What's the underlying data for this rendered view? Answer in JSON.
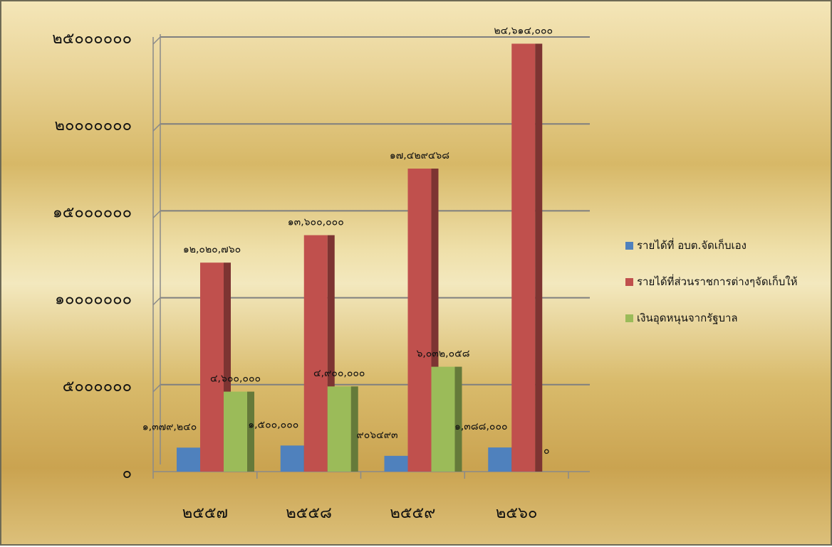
{
  "chart_data": {
    "type": "bar",
    "title": "",
    "xlabel": "",
    "ylabel": "",
    "ylim": [
      0,
      25000000
    ],
    "grid": true,
    "legend_position": "right",
    "categories": [
      "๒๕๕๗",
      "๒๕๕๘",
      "๒๕๕๙",
      "๒๕๖๐"
    ],
    "y_ticks": [
      0,
      5000000,
      10000000,
      15000000,
      20000000,
      25000000
    ],
    "y_tick_labels": [
      "๐",
      "๕๐๐๐๐๐๐",
      "๑๐๐๐๐๐๐๐",
      "๑๕๐๐๐๐๐๐",
      "๒๐๐๐๐๐๐๐",
      "๒๕๐๐๐๐๐๐"
    ],
    "series": [
      {
        "name": "รายได้ที่ อบต.จัดเก็บเอง",
        "color": "#4f81bd",
        "values": [
          1379240,
          1500000,
          906493,
          1388000
        ],
        "labels": [
          "๑,๓๗๙,๒๔๐",
          "๑,๕๐๐,๐๐๐",
          "๙๐๖๔๙๓",
          "๑,๓๘๘,๐๐๐"
        ]
      },
      {
        "name": "รายได้ที่ส่วนราชการต่างๆจัดเก็บให้",
        "color": "#c0504d",
        "values": [
          12020760,
          13600000,
          17429468,
          24614000
        ],
        "labels": [
          "๑๒,๐๒๐,๗๖๐",
          "๑๓,๖๐๐,๐๐๐",
          "๑๗,๔๒๙๔๖๘",
          "๒๔,๖๑๔,๐๐๐"
        ]
      },
      {
        "name": "เงินอุดหนุนจากรัฐบาล",
        "color": "#9bbb59",
        "values": [
          4600000,
          4900000,
          6032058,
          0
        ],
        "labels": [
          "๔,๖๐๐,๐๐๐",
          "๔,๙๐๐,๐๐๐",
          "๖,๐๓๒,๐๕๘",
          "๐"
        ]
      }
    ]
  }
}
